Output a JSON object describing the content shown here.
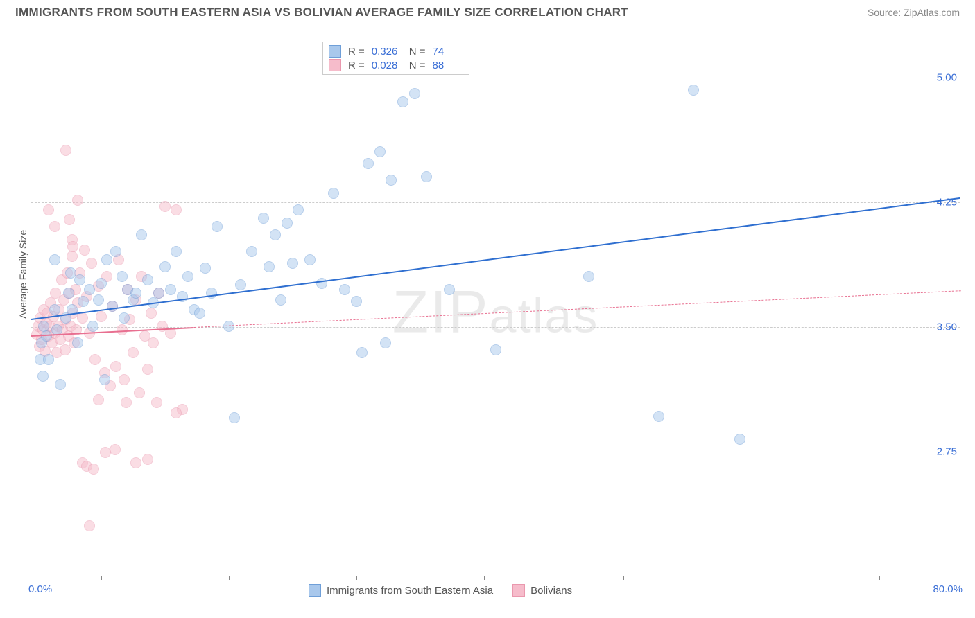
{
  "title": "IMMIGRANTS FROM SOUTH EASTERN ASIA VS BOLIVIAN AVERAGE FAMILY SIZE CORRELATION CHART",
  "source": "Source: ZipAtlas.com",
  "watermark": "ZIPatlas",
  "chart": {
    "type": "scatter",
    "ylabel": "Average Family Size",
    "xlim": [
      0,
      80
    ],
    "ylim": [
      2.0,
      5.3
    ],
    "x_label_min": "0.0%",
    "x_label_max": "80.0%",
    "ytick_values": [
      2.75,
      3.5,
      4.25,
      5.0
    ],
    "ytick_labels": [
      "2.75",
      "3.50",
      "4.25",
      "5.00"
    ],
    "xtick_values": [
      6,
      17,
      28,
      39,
      51,
      62,
      73
    ],
    "grid_color": "#cccccc",
    "background_color": "#ffffff",
    "axis_color": "#888888",
    "marker_radius": 8,
    "marker_opacity": 0.5,
    "series": [
      {
        "name": "Immigrants from South Eastern Asia",
        "fill": "#a9c8ec",
        "stroke": "#6f9fd8",
        "trend_color": "#2f6fd0",
        "trend_width": 2.5,
        "trend_dash": "solid",
        "R": "0.326",
        "N": "74",
        "trend": {
          "x1": 0,
          "y1": 3.55,
          "x2": 80,
          "y2": 4.28
        },
        "points": [
          [
            0.8,
            3.3
          ],
          [
            0.9,
            3.4
          ],
          [
            1.0,
            3.2
          ],
          [
            1.1,
            3.5
          ],
          [
            1.3,
            3.44
          ],
          [
            1.5,
            3.3
          ],
          [
            2.0,
            3.6
          ],
          [
            2.2,
            3.48
          ],
          [
            2.5,
            3.15
          ],
          [
            3.0,
            3.55
          ],
          [
            3.2,
            3.7
          ],
          [
            3.5,
            3.6
          ],
          [
            4.0,
            3.4
          ],
          [
            4.2,
            3.78
          ],
          [
            4.5,
            3.65
          ],
          [
            5.0,
            3.72
          ],
          [
            5.3,
            3.5
          ],
          [
            5.8,
            3.66
          ],
          [
            6.0,
            3.76
          ],
          [
            6.3,
            3.18
          ],
          [
            6.5,
            3.9
          ],
          [
            7.0,
            3.62
          ],
          [
            7.3,
            3.95
          ],
          [
            7.8,
            3.8
          ],
          [
            8.0,
            3.55
          ],
          [
            8.3,
            3.72
          ],
          [
            8.8,
            3.66
          ],
          [
            9.0,
            3.7
          ],
          [
            9.5,
            4.05
          ],
          [
            10.0,
            3.78
          ],
          [
            10.5,
            3.64
          ],
          [
            11.0,
            3.7
          ],
          [
            11.5,
            3.86
          ],
          [
            12.0,
            3.72
          ],
          [
            12.5,
            3.95
          ],
          [
            13.0,
            3.68
          ],
          [
            13.5,
            3.8
          ],
          [
            14.0,
            3.6
          ],
          [
            14.5,
            3.58
          ],
          [
            15.0,
            3.85
          ],
          [
            15.5,
            3.7
          ],
          [
            16.0,
            4.1
          ],
          [
            17.0,
            3.5
          ],
          [
            17.5,
            2.95
          ],
          [
            18.0,
            3.75
          ],
          [
            19.0,
            3.95
          ],
          [
            20.0,
            4.15
          ],
          [
            20.5,
            3.86
          ],
          [
            21.0,
            4.05
          ],
          [
            21.5,
            3.66
          ],
          [
            22.0,
            4.12
          ],
          [
            22.5,
            3.88
          ],
          [
            23.0,
            4.2
          ],
          [
            24.0,
            3.9
          ],
          [
            25.0,
            3.76
          ],
          [
            26.0,
            4.3
          ],
          [
            27.0,
            3.72
          ],
          [
            28.0,
            3.65
          ],
          [
            28.5,
            3.34
          ],
          [
            29.0,
            4.48
          ],
          [
            30.0,
            4.55
          ],
          [
            30.5,
            3.4
          ],
          [
            31.0,
            4.38
          ],
          [
            32.0,
            4.85
          ],
          [
            33.0,
            4.9
          ],
          [
            34.0,
            4.4
          ],
          [
            36.0,
            3.72
          ],
          [
            40.0,
            3.36
          ],
          [
            48.0,
            3.8
          ],
          [
            54.0,
            2.96
          ],
          [
            57.0,
            4.92
          ],
          [
            61.0,
            2.82
          ],
          [
            2.0,
            3.9
          ],
          [
            3.4,
            3.82
          ]
        ]
      },
      {
        "name": "Bolivians",
        "fill": "#f6bccb",
        "stroke": "#ea98ae",
        "trend_color": "#e86f90",
        "trend_width": 2,
        "trend_dash": "solid",
        "trend_dash_ext": "4 4",
        "R": "0.028",
        "N": "88",
        "trend": {
          "x1": 0,
          "y1": 3.45,
          "x2": 14,
          "y2": 3.5
        },
        "trend_ext": {
          "x1": 14,
          "y1": 3.5,
          "x2": 80,
          "y2": 3.72
        },
        "points": [
          [
            0.5,
            3.45
          ],
          [
            0.6,
            3.5
          ],
          [
            0.7,
            3.38
          ],
          [
            0.8,
            3.55
          ],
          [
            0.9,
            3.42
          ],
          [
            1.0,
            3.48
          ],
          [
            1.1,
            3.6
          ],
          [
            1.2,
            3.35
          ],
          [
            1.3,
            3.52
          ],
          [
            1.4,
            3.58
          ],
          [
            1.5,
            3.44
          ],
          [
            1.6,
            3.5
          ],
          [
            1.7,
            3.64
          ],
          [
            1.8,
            3.4
          ],
          [
            1.9,
            3.56
          ],
          [
            2.0,
            3.46
          ],
          [
            2.1,
            3.7
          ],
          [
            2.2,
            3.34
          ],
          [
            2.3,
            3.5
          ],
          [
            2.4,
            3.6
          ],
          [
            2.5,
            3.42
          ],
          [
            2.6,
            3.78
          ],
          [
            2.7,
            3.48
          ],
          [
            2.8,
            3.66
          ],
          [
            2.9,
            3.36
          ],
          [
            3.0,
            3.54
          ],
          [
            3.1,
            3.82
          ],
          [
            3.2,
            3.44
          ],
          [
            3.3,
            3.7
          ],
          [
            3.4,
            3.5
          ],
          [
            3.5,
            3.92
          ],
          [
            3.6,
            3.58
          ],
          [
            3.7,
            3.4
          ],
          [
            3.8,
            3.72
          ],
          [
            3.9,
            3.48
          ],
          [
            4.0,
            3.64
          ],
          [
            4.2,
            3.82
          ],
          [
            4.4,
            3.55
          ],
          [
            4.6,
            3.96
          ],
          [
            4.8,
            3.68
          ],
          [
            5.0,
            3.46
          ],
          [
            5.2,
            3.88
          ],
          [
            5.5,
            3.3
          ],
          [
            5.8,
            3.74
          ],
          [
            6.0,
            3.56
          ],
          [
            6.3,
            3.22
          ],
          [
            6.5,
            3.8
          ],
          [
            6.8,
            3.14
          ],
          [
            7.0,
            3.62
          ],
          [
            7.3,
            3.26
          ],
          [
            7.5,
            3.9
          ],
          [
            7.8,
            3.48
          ],
          [
            8.0,
            3.18
          ],
          [
            8.3,
            3.72
          ],
          [
            8.5,
            3.54
          ],
          [
            8.8,
            3.34
          ],
          [
            9.0,
            3.66
          ],
          [
            9.3,
            3.1
          ],
          [
            9.5,
            3.8
          ],
          [
            9.8,
            3.44
          ],
          [
            10.0,
            3.24
          ],
          [
            10.3,
            3.58
          ],
          [
            10.5,
            3.4
          ],
          [
            10.8,
            3.04
          ],
          [
            11.0,
            3.7
          ],
          [
            11.3,
            3.5
          ],
          [
            11.5,
            4.22
          ],
          [
            12.0,
            3.46
          ],
          [
            12.5,
            4.2
          ],
          [
            13.0,
            3.0
          ],
          [
            1.5,
            4.2
          ],
          [
            2.0,
            4.1
          ],
          [
            3.0,
            4.56
          ],
          [
            3.3,
            4.14
          ],
          [
            3.5,
            4.02
          ],
          [
            4.0,
            4.26
          ],
          [
            4.4,
            2.68
          ],
          [
            4.8,
            2.66
          ],
          [
            5.0,
            2.3
          ],
          [
            5.4,
            2.64
          ],
          [
            5.8,
            3.06
          ],
          [
            6.4,
            2.74
          ],
          [
            7.2,
            2.76
          ],
          [
            8.2,
            3.04
          ],
          [
            9.0,
            2.68
          ],
          [
            10.0,
            2.7
          ],
          [
            12.5,
            2.98
          ],
          [
            3.6,
            3.98
          ]
        ]
      }
    ]
  }
}
